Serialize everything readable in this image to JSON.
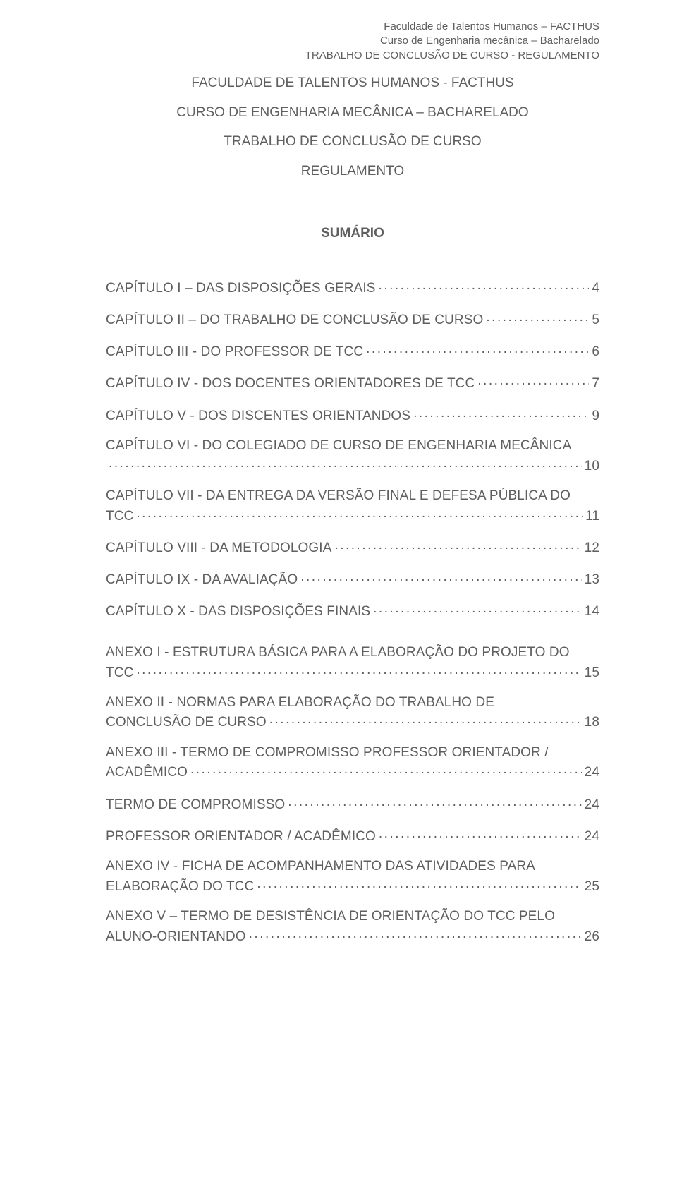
{
  "colors": {
    "text": "#5f5f5f",
    "background": "#ffffff"
  },
  "typography": {
    "body_fontsize_pt": 14,
    "title_fontsize_pt": 14,
    "font_family": "Arial"
  },
  "header": {
    "line1": "Faculdade de Talentos Humanos – FACTHUS",
    "line2": "Curso de Engenharia mecânica – Bacharelado",
    "line3": "TRABALHO DE CONCLUSÃO DE CURSO - REGULAMENTO"
  },
  "title": {
    "line1": "FACULDADE DE TALENTOS HUMANOS - FACTHUS",
    "line2": "CURSO DE ENGENHARIA MECÂNICA – BACHARELADO",
    "line3": "TRABALHO DE CONCLUSÃO DE CURSO",
    "line4": "REGULAMENTO"
  },
  "sumario_label": "SUMÁRIO",
  "toc": {
    "group1": [
      {
        "text": "CAPÍTULO I – DAS DISPOSIÇÕES GERAIS",
        "page": "4"
      },
      {
        "text": "CAPÍTULO II – DO TRABALHO DE CONCLUSÃO DE CURSO",
        "page": "5"
      },
      {
        "text": "CAPÍTULO III - DO PROFESSOR DE TCC",
        "page": "6"
      },
      {
        "text": "CAPÍTULO IV - DOS DOCENTES ORIENTADORES DE TCC",
        "page": "7"
      },
      {
        "text": "CAPÍTULO V - DOS DISCENTES ORIENTANDOS",
        "page": "9"
      },
      {
        "text_pre": "CAPÍTULO VI - DO COLEGIADO DE CURSO DE ENGENHARIA MECÂNICA",
        "text": "",
        "page": "10",
        "wrap": true
      },
      {
        "text_pre": "CAPÍTULO VII - DA ENTREGA DA VERSÃO FINAL E DEFESA PÚBLICA DO",
        "text": "TCC",
        "page": "11",
        "wrap": true
      },
      {
        "text": "CAPÍTULO VIII - DA METODOLOGIA",
        "page": "12"
      },
      {
        "text": "CAPÍTULO IX - DA AVALIAÇÃO",
        "page": "13"
      },
      {
        "text": "CAPÍTULO X - DAS DISPOSIÇÕES FINAIS",
        "page": "14"
      }
    ],
    "group2": [
      {
        "text_pre": "ANEXO I - ESTRUTURA BÁSICA PARA A ELABORAÇÃO DO PROJETO DO",
        "text": "TCC",
        "page": "15",
        "wrap": true
      },
      {
        "text_pre": "ANEXO II - NORMAS PARA ELABORAÇÃO DO TRABALHO DE",
        "text": "CONCLUSÃO DE CURSO",
        "page": "18",
        "wrap": true
      },
      {
        "text_pre": "ANEXO III - TERMO DE COMPROMISSO PROFESSOR ORIENTADOR /",
        "text": "ACADÊMICO",
        "page": "24",
        "wrap": true
      },
      {
        "text": "TERMO DE COMPROMISSO",
        "page": "24"
      },
      {
        "text": "PROFESSOR ORIENTADOR / ACADÊMICO",
        "page": "24"
      },
      {
        "text_pre": "ANEXO IV - FICHA DE ACOMPANHAMENTO DAS ATIVIDADES PARA",
        "text": "ELABORAÇÃO DO TCC",
        "page": "25",
        "wrap": true
      },
      {
        "text_pre": "ANEXO V – TERMO DE DESISTÊNCIA DE ORIENTAÇÃO DO TCC PELO",
        "text": "ALUNO-ORIENTANDO",
        "page": "26",
        "wrap": true
      }
    ]
  }
}
